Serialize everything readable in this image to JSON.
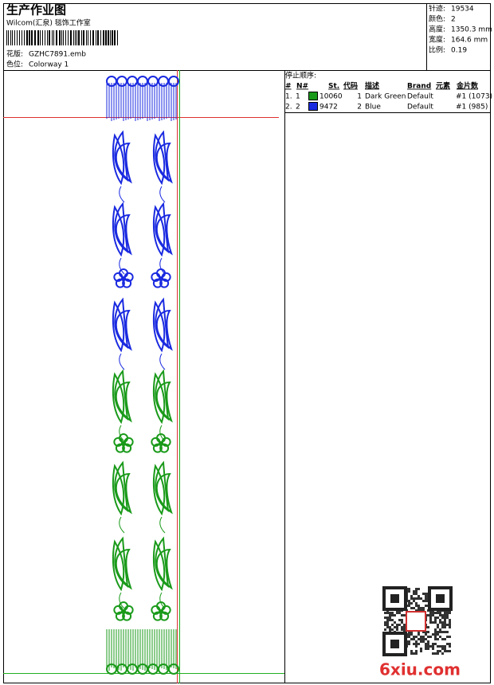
{
  "header": {
    "title": "生产作业图",
    "studio": "Wilcom(汇泉) 毯饰工作室",
    "design_label": "花版:",
    "design_file": "GZHC7891.emb",
    "colorway_label": "色位:",
    "colorway": "Colorway 1"
  },
  "info": [
    {
      "label": "针迹:",
      "value": "19534"
    },
    {
      "label": "颜色:",
      "value": "2"
    },
    {
      "label": "高度:",
      "value": "1350.3 mm"
    },
    {
      "label": "宽度:",
      "value": "164.6 mm"
    },
    {
      "label": "比例:",
      "value": "0.19"
    }
  ],
  "stop_sequence": {
    "title": "停止顺序:",
    "columns": [
      "#",
      "N#",
      "St.",
      "代码",
      "描述",
      "Brand",
      "元素",
      "金片数"
    ],
    "rows": [
      {
        "index": "1.",
        "n": "1",
        "stitches": "10060",
        "code": "1",
        "description": "Dark Green",
        "brand": "Default",
        "sequins": "#1 (1073)"
      },
      {
        "index": "2.",
        "n": "2",
        "stitches": "9472",
        "code": "2",
        "description": "Blue",
        "brand": "Default",
        "sequins": "#1 (985)"
      }
    ]
  },
  "watermark": "6xiu.com"
}
